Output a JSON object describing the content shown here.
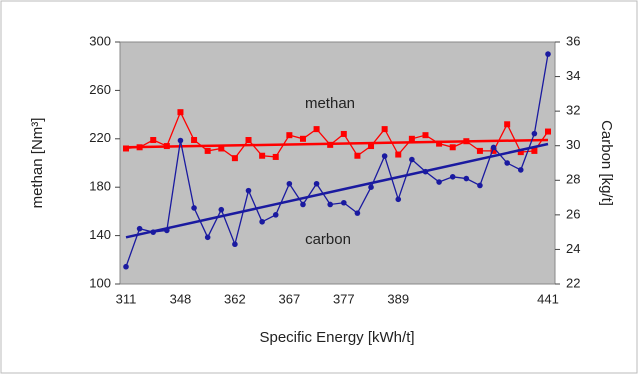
{
  "chart_data": {
    "type": "line",
    "x_label": "Specific Energy [kWh/t]",
    "y_label": "methan [Nm³]",
    "y2_label": "Carbon [kg/t]",
    "annotations": [
      "methan",
      "carbon"
    ],
    "categories": [
      "311",
      null,
      null,
      null,
      "348",
      null,
      null,
      null,
      "362",
      null,
      null,
      null,
      "367",
      null,
      null,
      null,
      "377",
      null,
      null,
      null,
      "389",
      null,
      null,
      null,
      null,
      null,
      null,
      null,
      null,
      null,
      null,
      "441"
    ],
    "series": [
      {
        "name": "methan",
        "color": "#ff0000",
        "axis": "y",
        "values": [
          212,
          213,
          219,
          214,
          242,
          219,
          210,
          212,
          204,
          219,
          206,
          205,
          223,
          220,
          228,
          215,
          224,
          206,
          214,
          228,
          207,
          220,
          223,
          216,
          213,
          218,
          210,
          210,
          232,
          209,
          210,
          226
        ],
        "trend": [
          213,
          219
        ]
      },
      {
        "name": "carbon",
        "color": "#1a1aa0",
        "axis": "y2",
        "values": [
          23,
          25.2,
          25,
          25.1,
          30.3,
          26.4,
          24.7,
          26.3,
          24.3,
          27.4,
          25.6,
          26,
          27.8,
          26.6,
          27.8,
          26.6,
          26.7,
          26.1,
          27.6,
          29.4,
          26.9,
          29.2,
          28.5,
          27.9,
          28.2,
          28.1,
          27.7,
          29.9,
          29,
          28.6,
          30.7,
          35.3
        ],
        "trend": [
          24.7,
          30.1
        ]
      }
    ],
    "ylim": [
      100,
      300
    ],
    "yticks": [
      100,
      140,
      180,
      220,
      260,
      300
    ],
    "y2lim": [
      22,
      36
    ],
    "y2ticks": [
      22,
      24,
      26,
      28,
      30,
      32,
      34,
      36
    ]
  }
}
